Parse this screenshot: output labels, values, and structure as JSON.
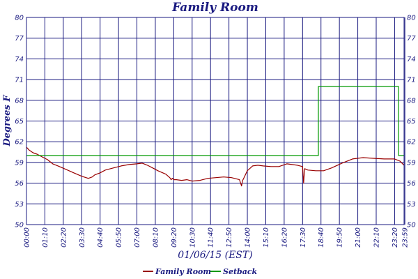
{
  "chart_data": {
    "type": "line",
    "title": "Family Room",
    "ylabel": "Degrees F",
    "xlabel": "01/06/15 (EST)",
    "ylim": [
      50,
      80
    ],
    "y_ticks": [
      50,
      53,
      56,
      59,
      62,
      65,
      68,
      71,
      74,
      77,
      80
    ],
    "x_range_minutes": [
      0,
      1436
    ],
    "x_tick_labels": [
      "00:00",
      "01:10",
      "02:20",
      "03:30",
      "04:40",
      "05:50",
      "07:00",
      "08:10",
      "09:20",
      "10:30",
      "11:40",
      "12:50",
      "14:00",
      "15:10",
      "16:20",
      "17:30",
      "18:40",
      "19:50",
      "21:00",
      "22:10",
      "23:20",
      "23:59"
    ],
    "grid": true,
    "legend_position": "bottom",
    "series": [
      {
        "name": "Family Room",
        "color": "#990000",
        "x": [
          0,
          10,
          25,
          40,
          60,
          80,
          100,
          120,
          150,
          180,
          210,
          235,
          250,
          260,
          280,
          300,
          330,
          360,
          390,
          420,
          440,
          460,
          480,
          500,
          530,
          545,
          550,
          555,
          560,
          570,
          590,
          610,
          630,
          660,
          690,
          720,
          750,
          780,
          810,
          818,
          822,
          826,
          840,
          860,
          880,
          900,
          930,
          960,
          990,
          1030,
          1050,
          1054,
          1058,
          1070,
          1100,
          1130,
          1160,
          1200,
          1240,
          1280,
          1320,
          1360,
          1400,
          1420,
          1436
        ],
        "values": [
          61.2,
          60.8,
          60.4,
          60.2,
          59.8,
          59.4,
          58.8,
          58.5,
          58.0,
          57.5,
          57.0,
          56.7,
          56.9,
          57.2,
          57.5,
          57.9,
          58.2,
          58.5,
          58.7,
          58.8,
          58.9,
          58.6,
          58.2,
          57.8,
          57.3,
          56.8,
          56.5,
          56.7,
          56.5,
          56.5,
          56.4,
          56.5,
          56.3,
          56.4,
          56.7,
          56.8,
          56.9,
          56.8,
          56.5,
          55.6,
          56.4,
          56.7,
          57.8,
          58.5,
          58.6,
          58.5,
          58.4,
          58.4,
          58.8,
          58.6,
          58.4,
          56.0,
          58.1,
          57.9,
          57.8,
          57.8,
          58.2,
          58.9,
          59.5,
          59.7,
          59.6,
          59.5,
          59.5,
          59.2,
          58.6
        ]
      },
      {
        "name": "Setback",
        "color": "#009900",
        "x": [
          0,
          1110,
          1110,
          1415,
          1415,
          1436
        ],
        "values": [
          60,
          60,
          70,
          70,
          60,
          60
        ]
      }
    ]
  }
}
